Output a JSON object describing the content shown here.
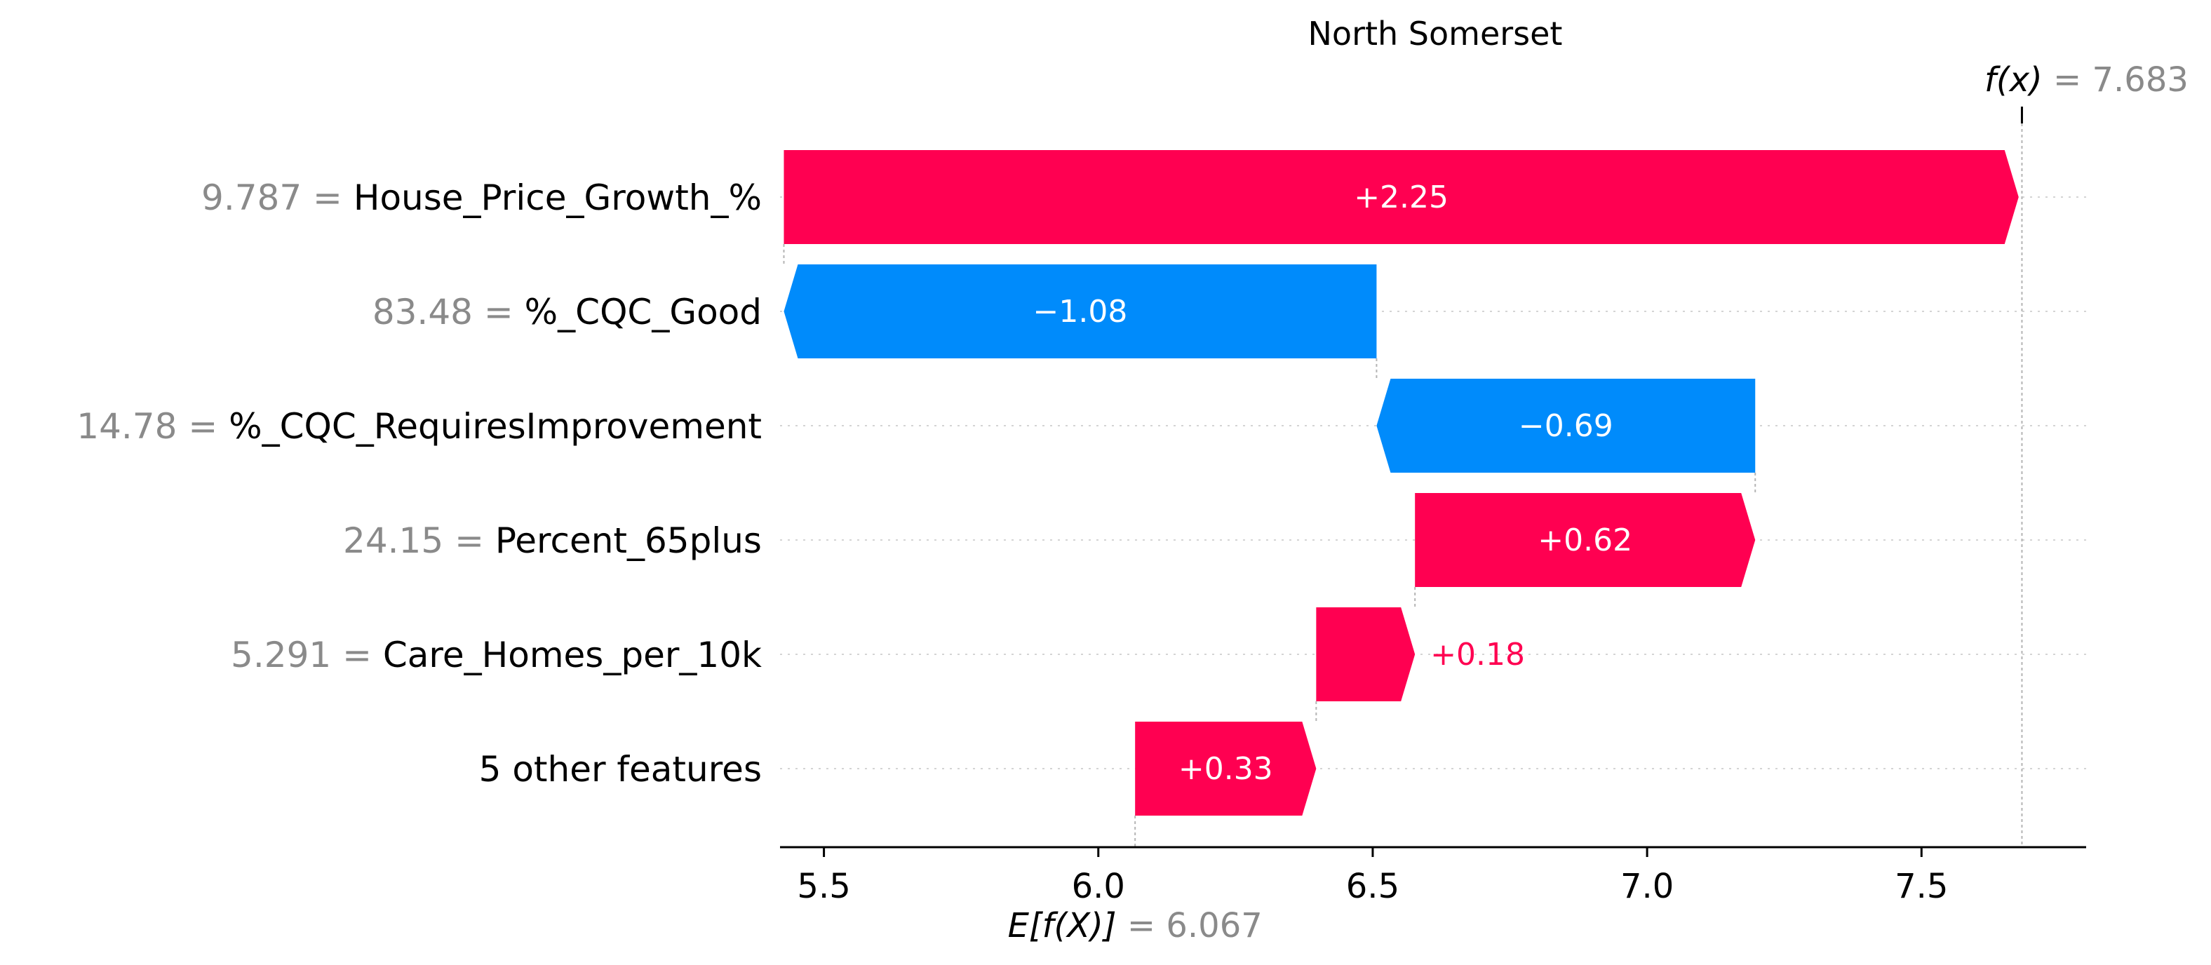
{
  "chart_data": {
    "type": "waterfall",
    "title": "North Somerset",
    "base_value": 6.067,
    "base_value_text": "6.067",
    "base_label": "E[f(X)]",
    "output_value": 7.683,
    "output_value_text": "7.683",
    "output_label": "f(x)",
    "features": [
      {
        "name": "House_Price_Growth_%",
        "value_text": "9.787 =",
        "contribution": 2.25,
        "label": "+2.25"
      },
      {
        "name": "%_CQC_Good",
        "value_text": "83.48 =",
        "contribution": -1.08,
        "label": "−1.08"
      },
      {
        "name": "%_CQC_RequiresImprovement",
        "value_text": "14.78 =",
        "contribution": -0.69,
        "label": "−0.69"
      },
      {
        "name": "Percent_65plus",
        "value_text": "24.15 =",
        "contribution": 0.62,
        "label": "+0.62"
      },
      {
        "name": "Care_Homes_per_10k",
        "value_text": "5.291 =",
        "contribution": 0.18,
        "label": "+0.18"
      },
      {
        "name": "5 other features",
        "value_text": "",
        "contribution": 0.33,
        "label": "+0.33"
      }
    ],
    "xlim": [
      5.42,
      7.8
    ],
    "xticks": [
      5.5,
      6.0,
      6.5,
      7.0,
      7.5
    ],
    "xtick_labels": [
      "5.5",
      "6.0",
      "6.5",
      "7.0",
      "7.5"
    ],
    "colors": {
      "positive": "#ff0051",
      "negative": "#008bfb",
      "muted": "#8a8a8a"
    }
  }
}
